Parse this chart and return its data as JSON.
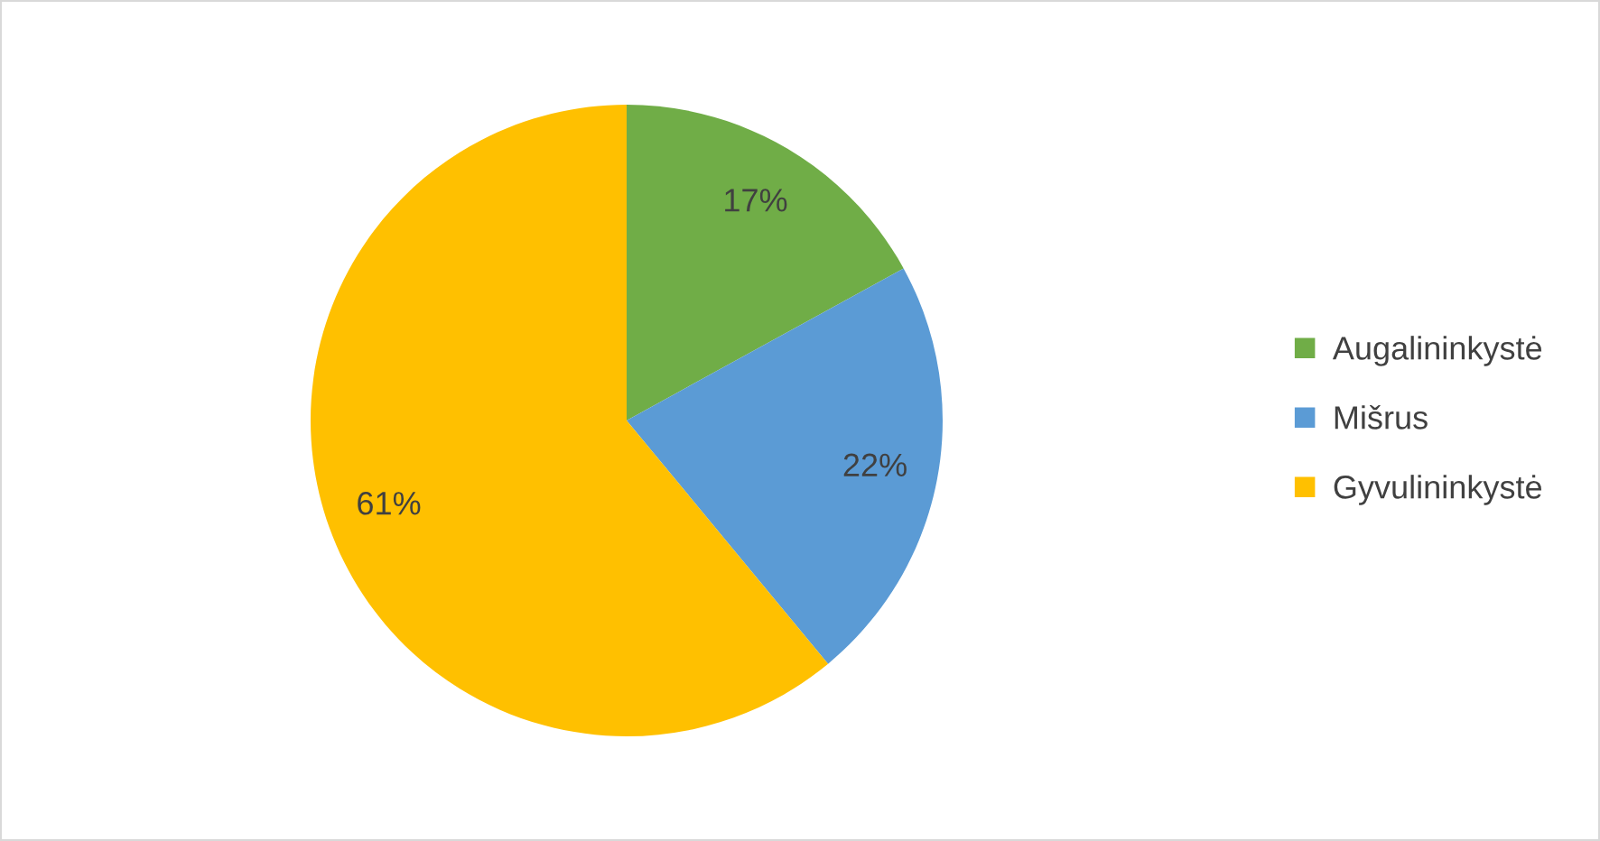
{
  "chart_data": {
    "type": "pie",
    "categories": [
      "Augalininkystė",
      "Mišrus",
      "Gyvulininkystė"
    ],
    "values": [
      17,
      22,
      61
    ],
    "colors": [
      "#70ad47",
      "#5b9bd5",
      "#ffc000"
    ],
    "value_labels": [
      "17%",
      "22%",
      "61%"
    ],
    "legend": "right"
  }
}
